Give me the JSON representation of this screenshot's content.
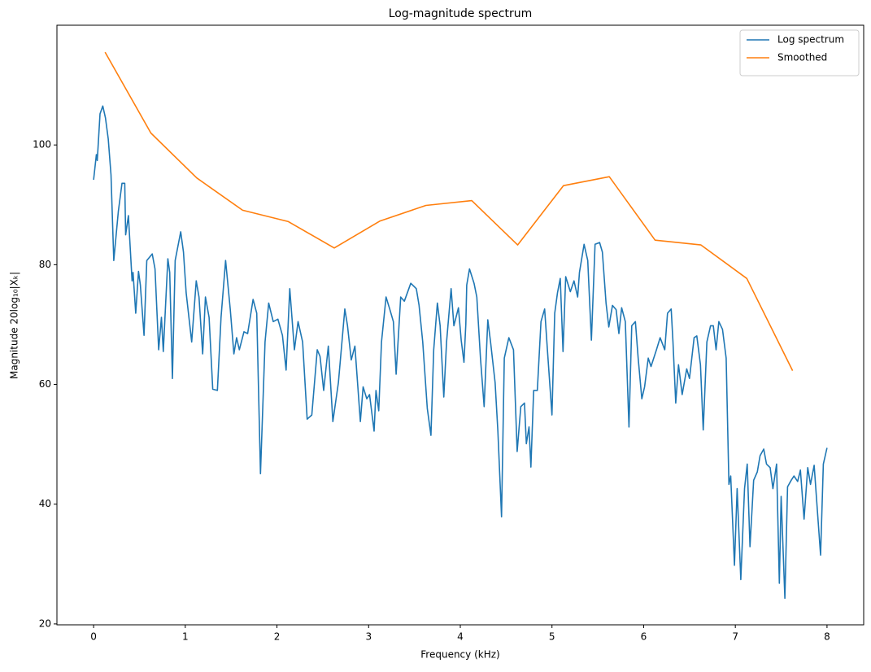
{
  "chart_data": {
    "type": "line",
    "title": "Log-magnitude spectrum",
    "xlabel": "Frequency (kHz)",
    "ylabel": "Magnitude 20log₁₀|Xₖ|",
    "xlim": [
      -0.4,
      8.4
    ],
    "ylim": [
      19.85,
      120
    ],
    "xticks": [
      0,
      1,
      2,
      3,
      4,
      5,
      6,
      7,
      8
    ],
    "yticks": [
      20,
      40,
      60,
      80,
      100
    ],
    "legend": "upper right",
    "series": [
      {
        "name": "Log spectrum",
        "color": "#1f77b4",
        "x": [
          0,
          0.03,
          0.04,
          0.07,
          0.1,
          0.13,
          0.16,
          0.19,
          0.22,
          0.27,
          0.31,
          0.34,
          0.35,
          0.38,
          0.42,
          0.43,
          0.46,
          0.49,
          0.51,
          0.55,
          0.58,
          0.64,
          0.67,
          0.71,
          0.74,
          0.76,
          0.81,
          0.83,
          0.86,
          0.89,
          0.95,
          0.98,
          1.01,
          1.07,
          1.12,
          1.15,
          1.19,
          1.22,
          1.26,
          1.3,
          1.35,
          1.39,
          1.44,
          1.49,
          1.53,
          1.56,
          1.59,
          1.64,
          1.68,
          1.74,
          1.78,
          1.82,
          1.87,
          1.91,
          1.96,
          2.01,
          2.06,
          2.1,
          2.14,
          2.19,
          2.23,
          2.28,
          2.33,
          2.38,
          2.44,
          2.47,
          2.51,
          2.56,
          2.61,
          2.67,
          2.74,
          2.77,
          2.81,
          2.85,
          2.91,
          2.94,
          2.98,
          3.01,
          3.06,
          3.08,
          3.11,
          3.14,
          3.19,
          3.23,
          3.27,
          3.3,
          3.35,
          3.39,
          3.46,
          3.52,
          3.55,
          3.59,
          3.64,
          3.68,
          3.71,
          3.75,
          3.78,
          3.82,
          3.85,
          3.9,
          3.93,
          3.98,
          4.01,
          4.04,
          4.06,
          4.07,
          4.1,
          4.15,
          4.18,
          4.22,
          4.26,
          4.3,
          4.33,
          4.38,
          4.41,
          4.45,
          4.48,
          4.53,
          4.58,
          4.62,
          4.66,
          4.7,
          4.72,
          4.75,
          4.77,
          4.8,
          4.84,
          4.88,
          4.92,
          4.95,
          5.0,
          5.03,
          5.06,
          5.09,
          5.12,
          5.15,
          5.2,
          5.24,
          5.28,
          5.3,
          5.35,
          5.39,
          5.43,
          5.47,
          5.52,
          5.55,
          5.59,
          5.62,
          5.66,
          5.7,
          5.73,
          5.76,
          5.8,
          5.84,
          5.87,
          5.91,
          5.94,
          5.98,
          6.01,
          6.05,
          6.08,
          6.14,
          6.18,
          6.23,
          6.26,
          6.3,
          6.32,
          6.35,
          6.38,
          6.42,
          6.47,
          6.5,
          6.55,
          6.58,
          6.62,
          6.65,
          6.69,
          6.73,
          6.76,
          6.79,
          6.82,
          6.86,
          6.9,
          6.93,
          6.95,
          6.99,
          7.02,
          7.06,
          7.1,
          7.13,
          7.16,
          7.2,
          7.24,
          7.27,
          7.31,
          7.34,
          7.38,
          7.41,
          7.45,
          7.48,
          7.5,
          7.54,
          7.57,
          7.61,
          7.64,
          7.68,
          7.71,
          7.75,
          7.79,
          7.82,
          7.86,
          7.89,
          7.93,
          7.96,
          8.0
        ],
        "values": [
          94.2,
          98.4,
          97.4,
          105.2,
          106.5,
          104.5,
          101,
          95,
          80.7,
          88.9,
          93.6,
          93.6,
          85,
          88.2,
          77.3,
          78.7,
          71.9,
          78.9,
          76.6,
          68.2,
          80.7,
          81.8,
          79.3,
          65.8,
          71.2,
          65.5,
          81,
          78.7,
          61,
          80.7,
          85.5,
          82.1,
          75.3,
          67.1,
          77.3,
          74.6,
          65.1,
          74.6,
          71.2,
          59.2,
          59,
          71.2,
          80.7,
          72.6,
          65.1,
          67.8,
          65.8,
          68.8,
          68.5,
          74.2,
          71.9,
          45.1,
          67.1,
          73.6,
          70.5,
          70.9,
          68.2,
          62.4,
          76,
          65.8,
          70.5,
          67.1,
          54.2,
          54.9,
          65.8,
          64.7,
          59,
          66.4,
          53.8,
          60.3,
          72.6,
          69.8,
          64.1,
          66.4,
          53.8,
          59.6,
          57.6,
          58.3,
          52.2,
          59,
          55.6,
          67.1,
          74.6,
          72.6,
          70.5,
          61.7,
          74.6,
          73.9,
          76.9,
          76,
          73.2,
          67.1,
          56,
          51.5,
          65.8,
          73.6,
          69.8,
          57.9,
          67.1,
          76,
          69.8,
          72.8,
          67.4,
          63.7,
          70.1,
          76.6,
          79.3,
          76.9,
          74.6,
          64.4,
          56.3,
          70.8,
          67.1,
          60.3,
          52.2,
          37.9,
          64.4,
          67.8,
          65.8,
          48.8,
          56.3,
          56.9,
          50.1,
          52.9,
          46.2,
          59,
          59,
          70.5,
          72.6,
          65.8,
          54.9,
          71.9,
          75.3,
          77.7,
          65.5,
          78,
          75.5,
          77.3,
          74.6,
          78.7,
          83.4,
          80.7,
          67.4,
          83.4,
          83.7,
          82.1,
          73.6,
          69.6,
          73.2,
          72.5,
          68.5,
          72.8,
          70.5,
          52.9,
          69.8,
          70.5,
          64.4,
          57.6,
          59.6,
          64.4,
          63,
          65.8,
          67.8,
          65.8,
          71.9,
          72.6,
          67.1,
          56.9,
          63.3,
          58.3,
          62.6,
          61,
          67.8,
          68.1,
          63.3,
          52.4,
          67.1,
          69.8,
          69.8,
          65.8,
          70.5,
          69.2,
          64.4,
          43.3,
          44.7,
          29.8,
          42.6,
          27.4,
          42.6,
          46.7,
          32.9,
          44.0,
          45.4,
          48.1,
          49.2,
          46.7,
          46.1,
          42.6,
          46.7,
          26.8,
          41.3,
          24.3,
          42.9,
          44,
          44.7,
          43.8,
          45.7,
          37.5,
          46.1,
          43.3,
          46.5,
          40,
          31.5,
          46.7,
          49.4
        ]
      },
      {
        "name": "Smoothed",
        "color": "#ff7f0e",
        "x": [
          0.125,
          0.625,
          1.125,
          1.625,
          2.125,
          2.625,
          3.125,
          3.625,
          4.125,
          4.625,
          5.125,
          5.625,
          6.125,
          6.625,
          7.125,
          7.625
        ],
        "values": [
          115.5,
          102,
          94.5,
          89.1,
          87.2,
          82.8,
          87.3,
          89.9,
          90.7,
          83.3,
          93.2,
          94.7,
          84.1,
          83.3,
          77.7,
          62.3
        ]
      }
    ]
  }
}
